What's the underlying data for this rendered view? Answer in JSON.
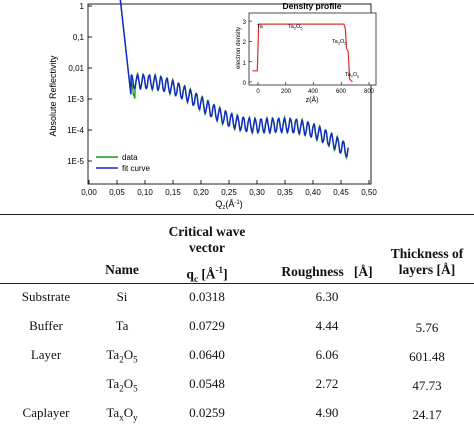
{
  "figure": {
    "main": {
      "xlabel": "Q",
      "xlabel_sub": "z",
      "xlabel_unit": "(Å",
      "xlabel_exp": "-1",
      "xlabel_close": ")",
      "ylabel": "Absolute Reflectivity",
      "x_ticks": [
        "0,00",
        "0,05",
        "0,10",
        "0,15",
        "0,20",
        "0,25",
        "0,30",
        "0,35",
        "0,40",
        "0,45",
        "0,50"
      ],
      "y_ticks": [
        "1E-5",
        "1E-4",
        "1E-3",
        "0,01",
        "0,1",
        "1"
      ],
      "legend": {
        "data_label": "data",
        "fit_label": "fit curve",
        "data_color": "#1a9a1a",
        "fit_color": "#1428c8"
      }
    },
    "inset": {
      "title": "Density profile",
      "xlabel": "z(Å)",
      "ylabel": "electron density",
      "x_ticks": [
        "0",
        "200",
        "400",
        "600",
        "800"
      ],
      "y_ticks": [
        "0",
        "1",
        "2",
        "3"
      ],
      "color": "#e0302a",
      "labels": {
        "ta": "Ta",
        "ta2o5_a": "Ta",
        "ta2o5_a_sub1": "2",
        "ta2o5_a_mid": "O",
        "ta2o5_a_sub2": "5",
        "ta2o5_b": "Ta",
        "ta2o5_b_sub1": "2",
        "ta2o5_b_mid": "O",
        "ta2o5_b_sub2": "5",
        "taxoy": "Ta",
        "taxoy_sub1": "x",
        "taxoy_mid": "O",
        "taxoy_sub2": "y"
      }
    }
  },
  "table": {
    "headers": {
      "name": "Name",
      "qc_title_1": "Critical wave",
      "qc_title_2": "vector",
      "qc_symbol": "q",
      "qc_sub": "c",
      "qc_unit_open": " [Å",
      "qc_unit_exp": "-1",
      "qc_unit_close": "]",
      "roughness": "Roughness",
      "roughness_unit": "[Å]",
      "thickness_1": "Thickness of",
      "thickness_2": "layers [Å]"
    },
    "rows": [
      {
        "label": "Substrate",
        "name": "Si",
        "qc": "0.0318",
        "roughness": "6.30",
        "thickness": ""
      },
      {
        "label": "Buffer",
        "name": "Ta",
        "qc": "0.0729",
        "roughness": "4.44",
        "thickness": "5.76"
      },
      {
        "label": "Layer",
        "name": "Ta",
        "name_sub1": "2",
        "name_mid": "O",
        "name_sub2": "5",
        "qc": "0.0640",
        "roughness": "6.06",
        "thickness": "601.48"
      },
      {
        "label": "",
        "name": "Ta",
        "name_sub1": "2",
        "name_mid": "O",
        "name_sub2": "5",
        "qc": "0.0548",
        "roughness": "2.72",
        "thickness": "47.73"
      },
      {
        "label": "Caplayer",
        "name": "Ta",
        "name_sub1": "x",
        "name_mid": "O",
        "name_sub2": "y",
        "qc": "0.0259",
        "roughness": "4.90",
        "thickness": "24.17"
      }
    ]
  }
}
